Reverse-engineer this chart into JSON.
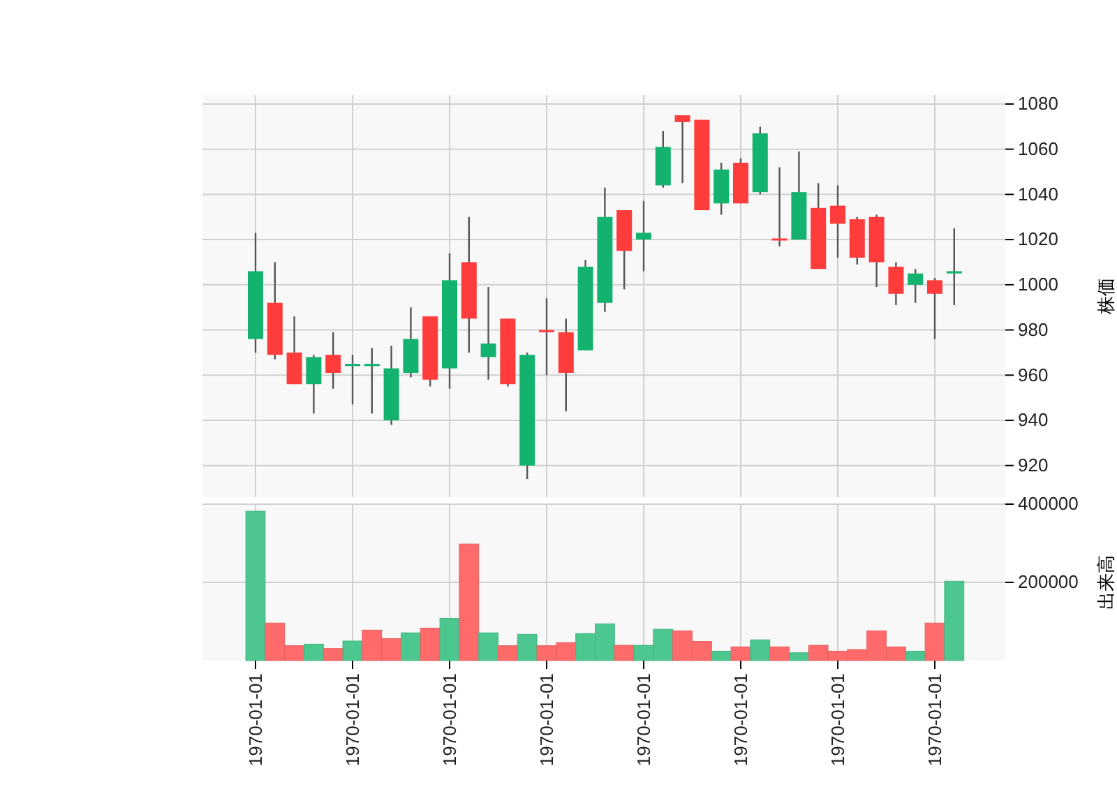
{
  "chart_data": [
    {
      "type": "candlestick",
      "ylabel": "株価",
      "categories": [
        "1970-01-01",
        null,
        null,
        null,
        null,
        "1970-01-01",
        null,
        null,
        null,
        null,
        "1970-01-01",
        null,
        null,
        null,
        null,
        "1970-01-01",
        null,
        null,
        null,
        null,
        "1970-01-01",
        null,
        null,
        null,
        null,
        "1970-01-01",
        null,
        null,
        null,
        null,
        "1970-01-01",
        null,
        null,
        null,
        null,
        "1970-01-01",
        null
      ],
      "ohlc": [
        [
          976,
          1023,
          970,
          1006
        ],
        [
          992,
          1010,
          967,
          969
        ],
        [
          970,
          986,
          956,
          956
        ],
        [
          956,
          969,
          943,
          968
        ],
        [
          969,
          979,
          954,
          961
        ],
        [
          964,
          969,
          947,
          965
        ],
        [
          964,
          972,
          943,
          965
        ],
        [
          940,
          973,
          938,
          963
        ],
        [
          961,
          990,
          959,
          976
        ],
        [
          986,
          986,
          955,
          958
        ],
        [
          963,
          1014,
          954,
          1002
        ],
        [
          1010,
          1030,
          970,
          985
        ],
        [
          968,
          999,
          958,
          974
        ],
        [
          985,
          985,
          955,
          956
        ],
        [
          920,
          970,
          914,
          969
        ],
        [
          980,
          994,
          960,
          979
        ],
        [
          979,
          985,
          944,
          961
        ],
        [
          971,
          1011,
          971,
          1008
        ],
        [
          992,
          1043,
          988,
          1030
        ],
        [
          1033,
          1033,
          998,
          1015
        ],
        [
          1020,
          1037,
          1006,
          1023
        ],
        [
          1044,
          1068,
          1043,
          1061
        ],
        [
          1075,
          1075,
          1045,
          1072
        ],
        [
          1073,
          1073,
          1033,
          1033
        ],
        [
          1036,
          1054,
          1031,
          1051
        ],
        [
          1054,
          1056,
          1036,
          1036
        ],
        [
          1041,
          1070,
          1040,
          1067
        ],
        [
          1020.5,
          1052,
          1017,
          1020
        ],
        [
          1020,
          1059,
          1020,
          1041
        ],
        [
          1034,
          1045,
          1007,
          1007
        ],
        [
          1035,
          1044,
          1012,
          1027
        ],
        [
          1029,
          1030,
          1009,
          1012
        ],
        [
          1030,
          1031,
          999,
          1010
        ],
        [
          1008,
          1010,
          991,
          996
        ],
        [
          1000,
          1007,
          992,
          1005
        ],
        [
          1002,
          1003,
          976,
          996
        ],
        [
          1005,
          1025,
          991,
          1006
        ]
      ],
      "colors": [
        "#13b36f",
        "#ff3c3c",
        "#ff3c3c",
        "#13b36f",
        "#ff3c3c",
        "#13b36f",
        "#13b36f",
        "#13b36f",
        "#13b36f",
        "#ff3c3c",
        "#13b36f",
        "#ff3c3c",
        "#13b36f",
        "#ff3c3c",
        "#13b36f",
        "#ff3c3c",
        "#ff3c3c",
        "#13b36f",
        "#13b36f",
        "#ff3c3c",
        "#13b36f",
        "#13b36f",
        "#ff3c3c",
        "#ff3c3c",
        "#13b36f",
        "#ff3c3c",
        "#13b36f",
        "#ff3c3c",
        "#13b36f",
        "#ff3c3c",
        "#ff3c3c",
        "#ff3c3c",
        "#ff3c3c",
        "#ff3c3c",
        "#13b36f",
        "#ff3c3c",
        "#13b36f"
      ],
      "ylim": [
        906,
        1084
      ],
      "yticks": [
        920,
        940,
        960,
        980,
        1000,
        1020,
        1040,
        1060,
        1080
      ],
      "grid": true,
      "tick_labels": "y"
    },
    {
      "type": "bar",
      "ylabel": "出来高",
      "categories": [
        "1970-01-01",
        null,
        null,
        null,
        null,
        "1970-01-01",
        null,
        null,
        null,
        null,
        "1970-01-01",
        null,
        null,
        null,
        null,
        "1970-01-01",
        null,
        null,
        null,
        null,
        "1970-01-01",
        null,
        null,
        null,
        null,
        "1970-01-01",
        null,
        null,
        null,
        null,
        "1970-01-01",
        null,
        null,
        null,
        null,
        "1970-01-01",
        null
      ],
      "values": [
        382000,
        96000,
        38000,
        42000,
        31000,
        50000,
        78000,
        56000,
        71000,
        83000,
        108000,
        298000,
        71000,
        38000,
        67000,
        38000,
        46000,
        69000,
        94000,
        39000,
        39000,
        80000,
        76000,
        49000,
        24000,
        35000,
        53000,
        35000,
        20000,
        39000,
        24000,
        28000,
        76000,
        35000,
        24000,
        96000,
        203000
      ],
      "colors": [
        "#4cc790",
        "#ff6b6b",
        "#ff6b6b",
        "#4cc790",
        "#ff6b6b",
        "#4cc790",
        "#ff6b6b",
        "#ff6b6b",
        "#4cc790",
        "#ff6b6b",
        "#4cc790",
        "#ff6b6b",
        "#4cc790",
        "#ff6b6b",
        "#4cc790",
        "#ff6b6b",
        "#ff6b6b",
        "#4cc790",
        "#4cc790",
        "#ff6b6b",
        "#4cc790",
        "#4cc790",
        "#ff6b6b",
        "#ff6b6b",
        "#4cc790",
        "#ff6b6b",
        "#4cc790",
        "#ff6b6b",
        "#4cc790",
        "#ff6b6b",
        "#ff6b6b",
        "#ff6b6b",
        "#ff6b6b",
        "#ff6b6b",
        "#4cc790",
        "#ff6b6b",
        "#4cc790"
      ],
      "ylim": [
        0,
        400000
      ],
      "yticks": [
        200000,
        400000
      ],
      "grid": true
    }
  ]
}
